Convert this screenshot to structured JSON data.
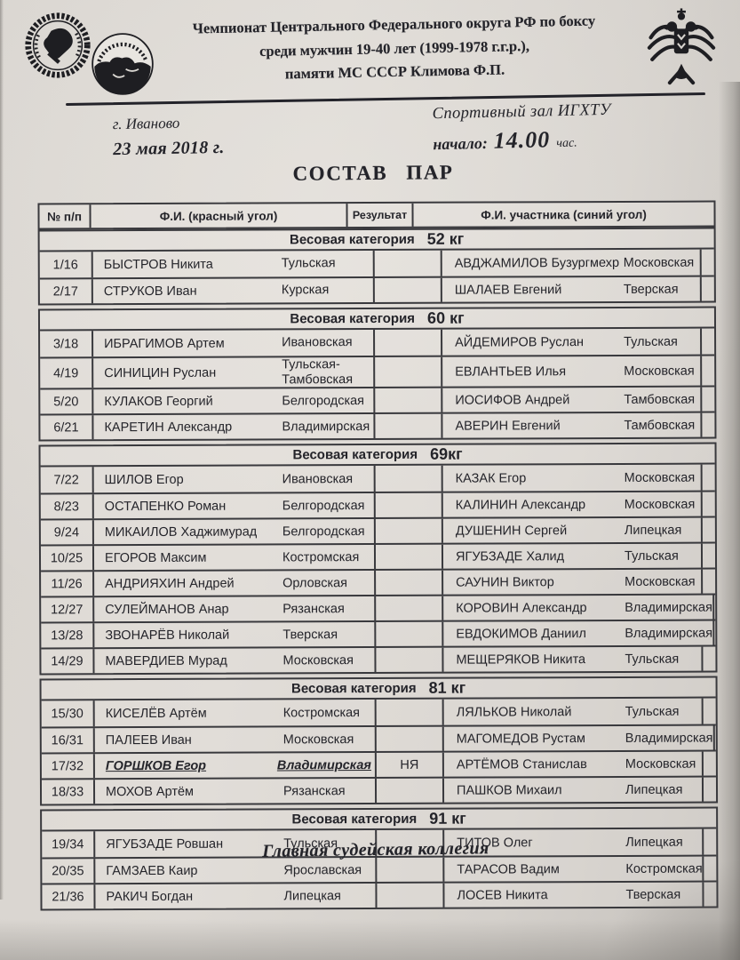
{
  "doc": {
    "title_lines": [
      "Чемпионат Центрального Федерального округа РФ по боксу",
      "среди мужчин 19-40 лет (1999-1978 г.г.р.),",
      "памяти МС СССР Климова Ф.П."
    ],
    "city": "г. Иваново",
    "date": "23 мая 2018 г.",
    "venue": "Спортивный зал ИГХТУ",
    "start_label": "начало:",
    "start_time": "14.00",
    "start_suffix": "час.",
    "main_title": "СОСТАВ ПАР",
    "footer": "Главная судейская коллегия"
  },
  "icons": {
    "left_stamp": "boxing-federation-round-stamp",
    "ivanovo_emblem": "ivanovo-region-boxing-federation-emblem",
    "eagle": "double-headed-eagle-emblem"
  },
  "colors": {
    "paper": "#d7d3ce",
    "ink": "#24242a",
    "table_line": "#39393d"
  },
  "table": {
    "headers": {
      "num": "№ п/п",
      "red": "Ф.И. (красный угол)",
      "result": "Результат",
      "blue": "Ф.И. участника (синий угол)"
    },
    "sections": [
      {
        "label": "Весовая категория",
        "value": "52 кг",
        "rows": [
          {
            "num": "1/16",
            "red_name": "БЫСТРОВ Никита",
            "red_region": "Тульская",
            "result": "",
            "blue_name": "АВДЖАМИЛОВ Бузургмехр",
            "blue_region": "Московская"
          },
          {
            "num": "2/17",
            "red_name": "СТРУКОВ Иван",
            "red_region": "Курская",
            "result": "",
            "blue_name": "ШАЛАЕВ Евгений",
            "blue_region": "Тверская"
          }
        ]
      },
      {
        "label": "Весовая категория",
        "value": "60 кг",
        "rows": [
          {
            "num": "3/18",
            "red_name": "ИБРАГИМОВ Артем",
            "red_region": "Ивановская",
            "result": "",
            "blue_name": "АЙДЕМИРОВ Руслан",
            "blue_region": "Тульская"
          },
          {
            "num": "4/19",
            "red_name": "СИНИЦИН Руслан",
            "red_region": "Тульская-Тамбовская",
            "result": "",
            "blue_name": "ЕВЛАНТЬЕВ Илья",
            "blue_region": "Московская"
          },
          {
            "num": "5/20",
            "red_name": "КУЛАКОВ Георгий",
            "red_region": "Белгородская",
            "result": "",
            "blue_name": "ИОСИФОВ Андрей",
            "blue_region": "Тамбовская"
          },
          {
            "num": "6/21",
            "red_name": "КАРЕТИН Александр",
            "red_region": "Владимирская",
            "result": "",
            "blue_name": "АВЕРИН Евгений",
            "blue_region": "Тамбовская"
          }
        ]
      },
      {
        "label": "Весовая категория",
        "value": "69кг",
        "rows": [
          {
            "num": "7/22",
            "red_name": "ШИЛОВ Егор",
            "red_region": "Ивановская",
            "result": "",
            "blue_name": "КАЗАК Егор",
            "blue_region": "Московская"
          },
          {
            "num": "8/23",
            "red_name": "ОСТАПЕНКО Роман",
            "red_region": "Белгородская",
            "result": "",
            "blue_name": "КАЛИНИН Александр",
            "blue_region": "Московская"
          },
          {
            "num": "9/24",
            "red_name": "МИКАИЛОВ Хаджимурад",
            "red_region": "Белгородская",
            "result": "",
            "blue_name": "ДУШЕНИН Сергей",
            "blue_region": "Липецкая"
          },
          {
            "num": "10/25",
            "red_name": "ЕГОРОВ Максим",
            "red_region": "Костромская",
            "result": "",
            "blue_name": "ЯГУБЗАДЕ Халид",
            "blue_region": "Тульская"
          },
          {
            "num": "11/26",
            "red_name": "АНДРИЯХИН Андрей",
            "red_region": "Орловская",
            "result": "",
            "blue_name": "САУНИН Виктор",
            "blue_region": "Московская"
          },
          {
            "num": "12/27",
            "red_name": "СУЛЕЙМАНОВ Анар",
            "red_region": "Рязанская",
            "result": "",
            "blue_name": "КОРОВИН Александр",
            "blue_region": "Владимирская"
          },
          {
            "num": "13/28",
            "red_name": "ЗВОНАРЁВ Николай",
            "red_region": "Тверская",
            "result": "",
            "blue_name": "ЕВДОКИМОВ Даниил",
            "blue_region": "Владимирская"
          },
          {
            "num": "14/29",
            "red_name": "МАВЕРДИЕВ Мурад",
            "red_region": "Московская",
            "result": "",
            "blue_name": "МЕЩЕРЯКОВ Никита",
            "blue_region": "Тульская"
          }
        ]
      },
      {
        "label": "Весовая категория",
        "value": "81 кг",
        "rows": [
          {
            "num": "15/30",
            "red_name": "КИСЕЛЁВ Артём",
            "red_region": "Костромская",
            "result": "",
            "blue_name": "ЛЯЛЬКОВ Николай",
            "blue_region": "Тульская"
          },
          {
            "num": "16/31",
            "red_name": "ПАЛЕЕВ Иван",
            "red_region": "Московская",
            "result": "",
            "blue_name": "МАГОМЕДОВ Рустам",
            "blue_region": "Владимирская"
          },
          {
            "num": "17/32",
            "red_name": "ГОРШКОВ Егор",
            "red_region": "Владимирская",
            "result": "НЯ",
            "blue_name": "АРТЁМОВ Станислав",
            "blue_region": "Московская",
            "highlight": true
          },
          {
            "num": "18/33",
            "red_name": "МОХОВ Артём",
            "red_region": "Рязанская",
            "result": "",
            "blue_name": "ПАШКОВ Михаил",
            "blue_region": "Липецкая"
          }
        ]
      },
      {
        "label": "Весовая категория",
        "value": "91 кг",
        "rows": [
          {
            "num": "19/34",
            "red_name": "ЯГУБЗАДЕ Ровшан",
            "red_region": "Тульская",
            "result": "",
            "blue_name": "ТИТОВ Олег",
            "blue_region": "Липецкая"
          },
          {
            "num": "20/35",
            "red_name": "ГАМЗАЕВ Каир",
            "red_region": "Ярославская",
            "result": "",
            "blue_name": "ТАРАСОВ Вадим",
            "blue_region": "Костромская"
          },
          {
            "num": "21/36",
            "red_name": "РАКИЧ Богдан",
            "red_region": "Липецкая",
            "result": "",
            "blue_name": "ЛОСЕВ Никита",
            "blue_region": "Тверская"
          }
        ]
      }
    ]
  }
}
